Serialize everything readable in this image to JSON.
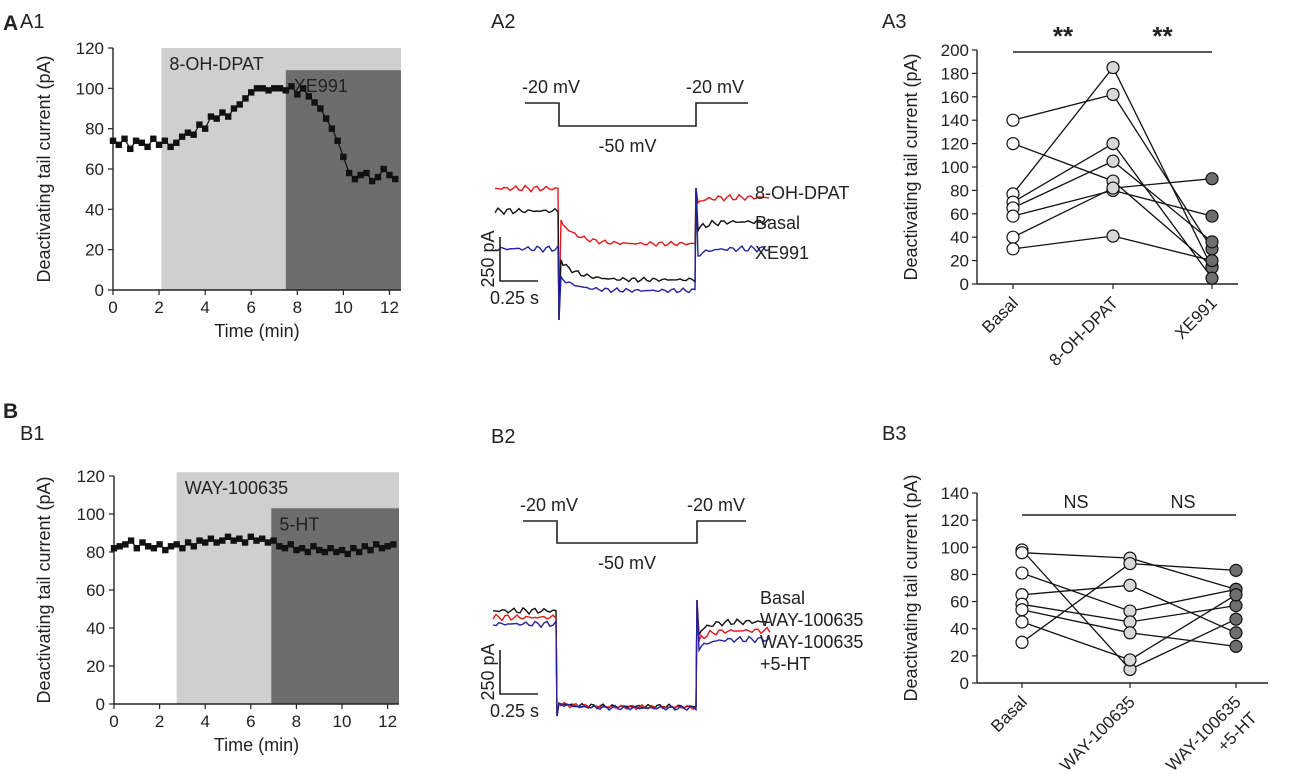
{
  "panel_letters": {
    "A": "A",
    "B": "B"
  },
  "colors": {
    "red": "#e0191c",
    "black": "#111111",
    "blue": "#23239a",
    "light_shade": "#cfcfcf",
    "dark_shade": "#6d6d6d",
    "axis": "#222222",
    "dark_marker": "#6e6e6e"
  },
  "chart_data": [
    {
      "id": "A1",
      "label": "A1",
      "type": "line",
      "xlabel": "Time (min)",
      "ylabel": "Deactivating tail current (pA)",
      "xlim": [
        0,
        12.5
      ],
      "ylim": [
        0,
        120
      ],
      "xticks": [
        0,
        2,
        4,
        6,
        8,
        10,
        12
      ],
      "yticks": [
        0,
        20,
        40,
        60,
        80,
        100,
        120
      ],
      "shades": [
        {
          "label": "8-OH-DPAT",
          "start": 2.1,
          "end": 12.5,
          "top": 120,
          "tone": "light"
        },
        {
          "label": "XE991",
          "start": 7.5,
          "end": 12.5,
          "top": 109,
          "tone": "dark"
        }
      ],
      "x": [
        0,
        0.25,
        0.5,
        0.75,
        1,
        1.25,
        1.5,
        1.75,
        2,
        2.25,
        2.5,
        2.75,
        3,
        3.25,
        3.5,
        3.75,
        4,
        4.25,
        4.5,
        4.75,
        5,
        5.25,
        5.5,
        5.75,
        6,
        6.25,
        6.5,
        6.75,
        7,
        7.25,
        7.5,
        7.75,
        8,
        8.25,
        8.5,
        8.75,
        9,
        9.25,
        9.5,
        9.75,
        10,
        10.25,
        10.5,
        10.75,
        11,
        11.25,
        11.5,
        11.75,
        12,
        12.25
      ],
      "y": [
        74,
        72,
        75,
        70,
        74,
        73,
        71,
        75,
        72,
        74,
        71,
        73,
        76,
        78,
        77,
        82,
        80,
        86,
        85,
        88,
        86,
        90,
        92,
        95,
        98,
        100,
        100,
        99,
        100,
        100,
        99,
        101,
        97,
        100,
        96,
        93,
        90,
        85,
        80,
        74,
        66,
        58,
        55,
        57,
        58,
        54,
        56,
        60,
        57,
        55
      ]
    },
    {
      "id": "A2",
      "label": "A2",
      "type": "line",
      "protocol": {
        "hold_label_left": "-20 mV",
        "step_label": "-50 mV",
        "hold_label_right": "-20 mV"
      },
      "scale_bar": {
        "current": "250 pA",
        "time": "0.25 s"
      },
      "series": [
        {
          "name": "8-OH-DPAT",
          "color": "#e0191c",
          "pre": 1050,
          "inst": 700,
          "steady": 430,
          "tail_peak": 890,
          "tail_ss": 950
        },
        {
          "name": "Basal",
          "color": "#111111",
          "pre": 800,
          "inst": 260,
          "steady": 30,
          "tail_peak": 580,
          "tail_ss": 680
        },
        {
          "name": "XE991",
          "color": "#23239a",
          "pre": 380,
          "inst": 70,
          "steady": -90,
          "tail_peak": 300,
          "tail_ss": 380
        }
      ]
    },
    {
      "id": "A3",
      "label": "A3",
      "type": "scatter",
      "ylabel": "Deactivating tail current (pA)",
      "categories": [
        "Basal",
        "8-OH-DPAT",
        "XE991"
      ],
      "ylim": [
        0,
        200
      ],
      "yticks": [
        0,
        20,
        40,
        60,
        80,
        100,
        120,
        140,
        160,
        180,
        200
      ],
      "significance": [
        {
          "from": 0,
          "to": 1,
          "label": "**"
        },
        {
          "from": 1,
          "to": 2,
          "label": "**"
        }
      ],
      "cells": [
        [
          140,
          162,
          30
        ],
        [
          120,
          88,
          15
        ],
        [
          77,
          185,
          14
        ],
        [
          70,
          120,
          5
        ],
        [
          65,
          105,
          36
        ],
        [
          58,
          80,
          58
        ],
        [
          40,
          82,
          90
        ],
        [
          30,
          41,
          20
        ]
      ]
    },
    {
      "id": "B1",
      "label": "B1",
      "type": "line",
      "xlabel": "Time (min)",
      "ylabel": "Deactivating tail current (pA)",
      "xlim": [
        0,
        12.5
      ],
      "ylim": [
        0,
        120
      ],
      "xticks": [
        0,
        2,
        4,
        6,
        8,
        10,
        12
      ],
      "yticks": [
        0,
        20,
        40,
        60,
        80,
        100,
        120
      ],
      "shades": [
        {
          "label": "WAY-100635",
          "start": 2.75,
          "end": 12.5,
          "top": 122,
          "tone": "light"
        },
        {
          "label": "5-HT",
          "start": 6.9,
          "end": 12.5,
          "top": 103,
          "tone": "dark"
        }
      ],
      "x": [
        0,
        0.25,
        0.5,
        0.75,
        1,
        1.25,
        1.5,
        1.75,
        2,
        2.25,
        2.5,
        2.75,
        3,
        3.25,
        3.5,
        3.75,
        4,
        4.25,
        4.5,
        4.75,
        5,
        5.25,
        5.5,
        5.75,
        6,
        6.25,
        6.5,
        6.75,
        7,
        7.25,
        7.5,
        7.75,
        8,
        8.25,
        8.5,
        8.75,
        9,
        9.25,
        9.5,
        9.75,
        10,
        10.25,
        10.5,
        10.75,
        11,
        11.25,
        11.5,
        11.75,
        12,
        12.25
      ],
      "y": [
        82,
        83,
        84,
        86,
        82,
        85,
        83,
        82,
        84,
        81,
        83,
        84,
        82,
        85,
        83,
        86,
        85,
        87,
        85,
        86,
        88,
        86,
        87,
        85,
        88,
        86,
        87,
        85,
        86,
        83,
        82,
        84,
        81,
        82,
        80,
        83,
        81,
        80,
        82,
        80,
        81,
        79,
        82,
        80,
        83,
        81,
        84,
        82,
        83,
        84
      ]
    },
    {
      "id": "B2",
      "label": "B2",
      "type": "line",
      "protocol": {
        "hold_label_left": "-20 mV",
        "step_label": "-50 mV",
        "hold_label_right": "-20 mV"
      },
      "scale_bar": {
        "current": "250 pA",
        "time": "0.25 s"
      },
      "series": [
        {
          "name": "Basal",
          "color": "#111111",
          "pre": 460,
          "inst": 40,
          "steady": 25,
          "tail_peak": 350,
          "tail_ss": 410
        },
        {
          "name": "WAY-100635",
          "color": "#e0191c",
          "pre": 430,
          "inst": 40,
          "steady": 22,
          "tail_peak": 320,
          "tail_ss": 370
        },
        {
          "name": "WAY-100635 +5-HT",
          "color": "#23239a",
          "pre": 400,
          "inst": 40,
          "steady": 18,
          "tail_peak": 280,
          "tail_ss": 330
        }
      ],
      "legend_lines": [
        "Basal",
        "WAY-100635",
        "WAY-100635",
        "+5-HT"
      ]
    },
    {
      "id": "B3",
      "label": "B3",
      "type": "scatter",
      "ylabel": "Deactivating tail current (pA)",
      "categories": [
        "Basal",
        "WAY-100635",
        "WAY-100635 +5-HT"
      ],
      "category_lines": [
        [
          "Basal"
        ],
        [
          "WAY-100635"
        ],
        [
          "WAY-100635",
          "+5-HT"
        ]
      ],
      "ylim": [
        0,
        140
      ],
      "yticks": [
        0,
        20,
        40,
        60,
        80,
        100,
        120,
        140
      ],
      "significance": [
        {
          "from": 0,
          "to": 1,
          "label": "NS"
        },
        {
          "from": 1,
          "to": 2,
          "label": "NS"
        }
      ],
      "cells": [
        [
          98,
          10,
          47
        ],
        [
          96,
          92,
          69
        ],
        [
          81,
          53,
          69
        ],
        [
          65,
          72,
          37
        ],
        [
          58,
          45,
          57
        ],
        [
          54,
          37,
          27
        ],
        [
          45,
          17,
          65
        ],
        [
          30,
          88,
          83
        ]
      ]
    }
  ]
}
